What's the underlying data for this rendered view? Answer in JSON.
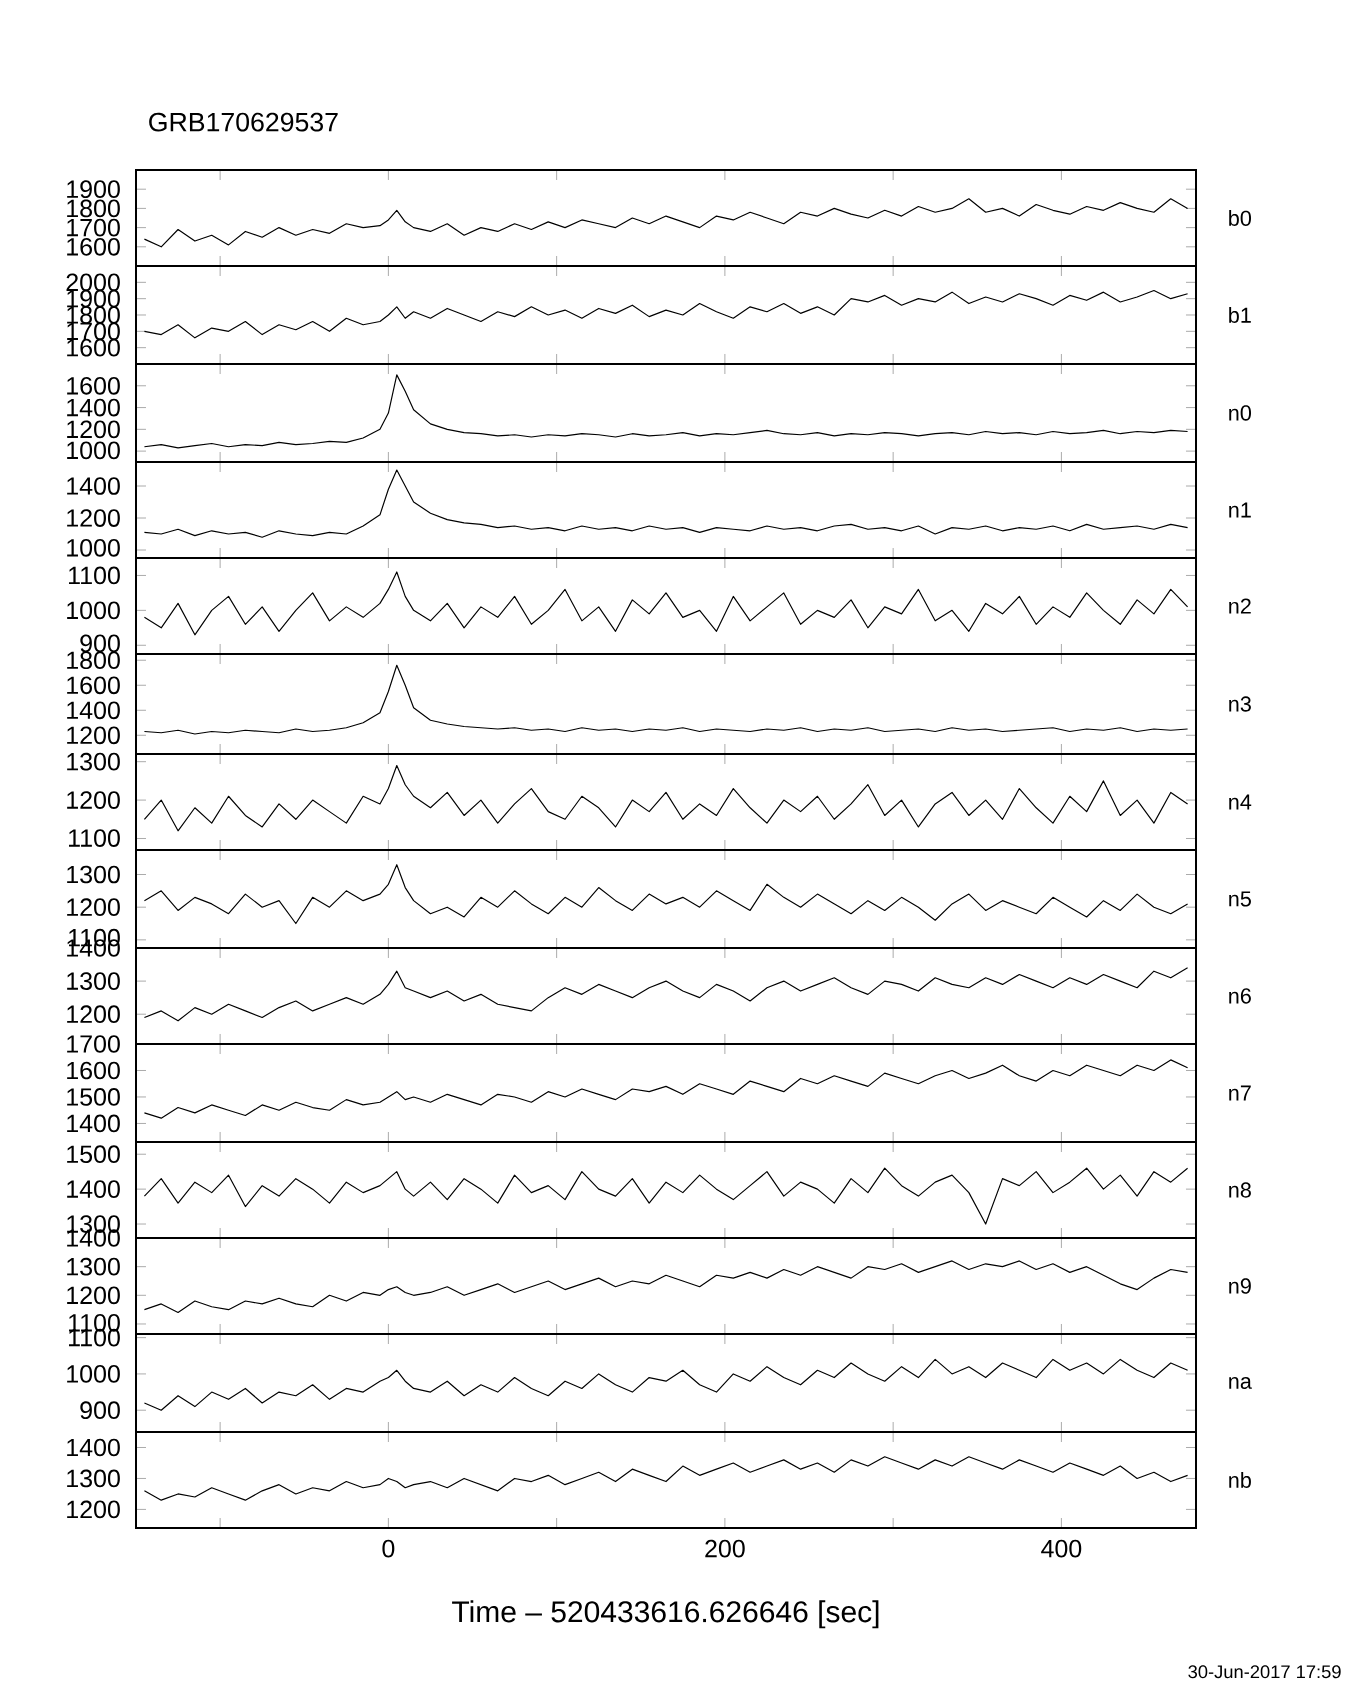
{
  "chart_data": [
    {
      "type": "line",
      "title": "GRB170629537",
      "annotations": [
        "b0"
      ],
      "color": "#000000",
      "xlim": [
        -150,
        480
      ],
      "xticks": [
        {
          "value": -100,
          "label": null
        },
        {
          "value": 0,
          "label": null
        },
        {
          "value": 100,
          "label": null
        },
        {
          "value": 200,
          "label": null
        },
        {
          "value": 300,
          "label": null
        },
        {
          "value": 400,
          "label": null
        }
      ],
      "tick_labels": "y",
      "ylim": [
        1500,
        2000
      ],
      "yticks": [
        1600,
        1700,
        1800,
        1900
      ],
      "x": [
        -145,
        -135,
        -125,
        -115,
        -105,
        -95,
        -85,
        -75,
        -65,
        -55,
        -45,
        -35,
        -25,
        -15,
        -5,
        0,
        5,
        10,
        15,
        25,
        35,
        45,
        55,
        65,
        75,
        85,
        95,
        105,
        115,
        125,
        135,
        145,
        155,
        165,
        175,
        185,
        195,
        205,
        215,
        225,
        235,
        245,
        255,
        265,
        275,
        285,
        295,
        305,
        315,
        325,
        335,
        345,
        355,
        365,
        375,
        385,
        395,
        405,
        415,
        425,
        435,
        445,
        455,
        465,
        475
      ],
      "values": [
        1640,
        1600,
        1690,
        1630,
        1660,
        1610,
        1680,
        1650,
        1700,
        1660,
        1690,
        1670,
        1720,
        1700,
        1710,
        1740,
        1790,
        1730,
        1700,
        1680,
        1720,
        1660,
        1700,
        1680,
        1720,
        1690,
        1730,
        1700,
        1740,
        1720,
        1700,
        1750,
        1720,
        1760,
        1730,
        1700,
        1760,
        1740,
        1780,
        1750,
        1720,
        1780,
        1760,
        1800,
        1770,
        1750,
        1790,
        1760,
        1810,
        1780,
        1800,
        1850,
        1780,
        1800,
        1760,
        1820,
        1790,
        1770,
        1810,
        1790,
        1830,
        1800,
        1780,
        1850,
        1800
      ]
    },
    {
      "type": "line",
      "annotations": [
        "b1"
      ],
      "color": "#000000",
      "xlim": [
        -150,
        480
      ],
      "xticks": [
        {
          "value": -100,
          "label": null
        },
        {
          "value": 0,
          "label": null
        },
        {
          "value": 100,
          "label": null
        },
        {
          "value": 200,
          "label": null
        },
        {
          "value": 300,
          "label": null
        },
        {
          "value": 400,
          "label": null
        }
      ],
      "tick_labels": "y",
      "ylim": [
        1500,
        2100
      ],
      "yticks": [
        1600,
        1700,
        1800,
        1900,
        2000
      ],
      "x": [
        -145,
        -135,
        -125,
        -115,
        -105,
        -95,
        -85,
        -75,
        -65,
        -55,
        -45,
        -35,
        -25,
        -15,
        -5,
        0,
        5,
        10,
        15,
        25,
        35,
        45,
        55,
        65,
        75,
        85,
        95,
        105,
        115,
        125,
        135,
        145,
        155,
        165,
        175,
        185,
        195,
        205,
        215,
        225,
        235,
        245,
        255,
        265,
        275,
        285,
        295,
        305,
        315,
        325,
        335,
        345,
        355,
        365,
        375,
        385,
        395,
        405,
        415,
        425,
        435,
        445,
        455,
        465,
        475
      ],
      "values": [
        1700,
        1680,
        1740,
        1660,
        1720,
        1700,
        1760,
        1680,
        1740,
        1710,
        1760,
        1700,
        1780,
        1740,
        1760,
        1800,
        1850,
        1780,
        1820,
        1780,
        1840,
        1800,
        1760,
        1820,
        1790,
        1850,
        1800,
        1830,
        1780,
        1840,
        1810,
        1860,
        1790,
        1830,
        1800,
        1870,
        1820,
        1780,
        1850,
        1820,
        1870,
        1810,
        1850,
        1800,
        1900,
        1880,
        1920,
        1860,
        1900,
        1880,
        1940,
        1870,
        1910,
        1880,
        1930,
        1900,
        1860,
        1920,
        1890,
        1940,
        1880,
        1910,
        1950,
        1900,
        1930
      ]
    },
    {
      "type": "line",
      "annotations": [
        "n0"
      ],
      "color": "#000000",
      "xlim": [
        -150,
        480
      ],
      "xticks": [
        {
          "value": -100,
          "label": null
        },
        {
          "value": 0,
          "label": null
        },
        {
          "value": 100,
          "label": null
        },
        {
          "value": 200,
          "label": null
        },
        {
          "value": 300,
          "label": null
        },
        {
          "value": 400,
          "label": null
        }
      ],
      "tick_labels": "y",
      "ylim": [
        900,
        1800
      ],
      "yticks": [
        1000,
        1200,
        1400,
        1600
      ],
      "x": [
        -145,
        -135,
        -125,
        -115,
        -105,
        -95,
        -85,
        -75,
        -65,
        -55,
        -45,
        -35,
        -25,
        -15,
        -5,
        0,
        5,
        10,
        15,
        25,
        35,
        45,
        55,
        65,
        75,
        85,
        95,
        105,
        115,
        125,
        135,
        145,
        155,
        165,
        175,
        185,
        195,
        205,
        215,
        225,
        235,
        245,
        255,
        265,
        275,
        285,
        295,
        305,
        315,
        325,
        335,
        345,
        355,
        365,
        375,
        385,
        395,
        405,
        415,
        425,
        435,
        445,
        455,
        465,
        475
      ],
      "values": [
        1040,
        1060,
        1030,
        1050,
        1070,
        1040,
        1060,
        1050,
        1080,
        1060,
        1070,
        1090,
        1080,
        1120,
        1200,
        1350,
        1700,
        1550,
        1380,
        1250,
        1200,
        1170,
        1160,
        1140,
        1150,
        1130,
        1150,
        1140,
        1160,
        1150,
        1130,
        1160,
        1140,
        1150,
        1170,
        1140,
        1160,
        1150,
        1170,
        1190,
        1160,
        1150,
        1170,
        1140,
        1160,
        1150,
        1170,
        1160,
        1140,
        1160,
        1170,
        1150,
        1180,
        1160,
        1170,
        1150,
        1180,
        1160,
        1170,
        1190,
        1160,
        1180,
        1170,
        1190,
        1180
      ]
    },
    {
      "type": "line",
      "annotations": [
        "n1"
      ],
      "color": "#000000",
      "xlim": [
        -150,
        480
      ],
      "xticks": [
        {
          "value": -100,
          "label": null
        },
        {
          "value": 0,
          "label": null
        },
        {
          "value": 100,
          "label": null
        },
        {
          "value": 200,
          "label": null
        },
        {
          "value": 300,
          "label": null
        },
        {
          "value": 400,
          "label": null
        }
      ],
      "tick_labels": "y",
      "ylim": [
        950,
        1550
      ],
      "yticks": [
        1000,
        1200,
        1400
      ],
      "x": [
        -145,
        -135,
        -125,
        -115,
        -105,
        -95,
        -85,
        -75,
        -65,
        -55,
        -45,
        -35,
        -25,
        -15,
        -5,
        0,
        5,
        10,
        15,
        25,
        35,
        45,
        55,
        65,
        75,
        85,
        95,
        105,
        115,
        125,
        135,
        145,
        155,
        165,
        175,
        185,
        195,
        205,
        215,
        225,
        235,
        245,
        255,
        265,
        275,
        285,
        295,
        305,
        315,
        325,
        335,
        345,
        355,
        365,
        375,
        385,
        395,
        405,
        415,
        425,
        435,
        445,
        455,
        465,
        475
      ],
      "values": [
        1110,
        1100,
        1130,
        1090,
        1120,
        1100,
        1110,
        1080,
        1120,
        1100,
        1090,
        1110,
        1100,
        1150,
        1220,
        1380,
        1500,
        1400,
        1300,
        1230,
        1190,
        1170,
        1160,
        1140,
        1150,
        1130,
        1140,
        1120,
        1150,
        1130,
        1140,
        1120,
        1150,
        1130,
        1140,
        1110,
        1140,
        1130,
        1120,
        1150,
        1130,
        1140,
        1120,
        1150,
        1160,
        1130,
        1140,
        1120,
        1150,
        1100,
        1140,
        1130,
        1150,
        1120,
        1140,
        1130,
        1150,
        1120,
        1160,
        1130,
        1140,
        1150,
        1130,
        1160,
        1140
      ]
    },
    {
      "type": "line",
      "annotations": [
        "n2"
      ],
      "color": "#000000",
      "xlim": [
        -150,
        480
      ],
      "xticks": [
        {
          "value": -100,
          "label": null
        },
        {
          "value": 0,
          "label": null
        },
        {
          "value": 100,
          "label": null
        },
        {
          "value": 200,
          "label": null
        },
        {
          "value": 300,
          "label": null
        },
        {
          "value": 400,
          "label": null
        }
      ],
      "tick_labels": "y",
      "ylim": [
        875,
        1150
      ],
      "yticks": [
        900,
        1000,
        1100
      ],
      "x": [
        -145,
        -135,
        -125,
        -115,
        -105,
        -95,
        -85,
        -75,
        -65,
        -55,
        -45,
        -35,
        -25,
        -15,
        -5,
        0,
        5,
        10,
        15,
        25,
        35,
        45,
        55,
        65,
        75,
        85,
        95,
        105,
        115,
        125,
        135,
        145,
        155,
        165,
        175,
        185,
        195,
        205,
        215,
        225,
        235,
        245,
        255,
        265,
        275,
        285,
        295,
        305,
        315,
        325,
        335,
        345,
        355,
        365,
        375,
        385,
        395,
        405,
        415,
        425,
        435,
        445,
        455,
        465,
        475
      ],
      "values": [
        980,
        950,
        1020,
        930,
        1000,
        1040,
        960,
        1010,
        940,
        1000,
        1050,
        970,
        1010,
        980,
        1020,
        1060,
        1110,
        1040,
        1000,
        970,
        1020,
        950,
        1010,
        980,
        1040,
        960,
        1000,
        1060,
        970,
        1010,
        940,
        1030,
        990,
        1050,
        980,
        1000,
        940,
        1040,
        970,
        1010,
        1050,
        960,
        1000,
        980,
        1030,
        950,
        1010,
        990,
        1060,
        970,
        1000,
        940,
        1020,
        990,
        1040,
        960,
        1010,
        980,
        1050,
        1000,
        960,
        1030,
        990,
        1060,
        1010
      ]
    },
    {
      "type": "line",
      "annotations": [
        "n3"
      ],
      "color": "#000000",
      "xlim": [
        -150,
        480
      ],
      "xticks": [
        {
          "value": -100,
          "label": null
        },
        {
          "value": 0,
          "label": null
        },
        {
          "value": 100,
          "label": null
        },
        {
          "value": 200,
          "label": null
        },
        {
          "value": 300,
          "label": null
        },
        {
          "value": 400,
          "label": null
        }
      ],
      "tick_labels": "y",
      "ylim": [
        1050,
        1850
      ],
      "yticks": [
        1200,
        1400,
        1600,
        1800
      ],
      "x": [
        -145,
        -135,
        -125,
        -115,
        -105,
        -95,
        -85,
        -75,
        -65,
        -55,
        -45,
        -35,
        -25,
        -15,
        -5,
        0,
        5,
        10,
        15,
        25,
        35,
        45,
        55,
        65,
        75,
        85,
        95,
        105,
        115,
        125,
        135,
        145,
        155,
        165,
        175,
        185,
        195,
        205,
        215,
        225,
        235,
        245,
        255,
        265,
        275,
        285,
        295,
        305,
        315,
        325,
        335,
        345,
        355,
        365,
        375,
        385,
        395,
        405,
        415,
        425,
        435,
        445,
        455,
        465,
        475
      ],
      "values": [
        1230,
        1220,
        1240,
        1210,
        1230,
        1220,
        1240,
        1230,
        1220,
        1250,
        1230,
        1240,
        1260,
        1300,
        1380,
        1550,
        1760,
        1600,
        1420,
        1320,
        1290,
        1270,
        1260,
        1250,
        1260,
        1240,
        1250,
        1230,
        1260,
        1240,
        1250,
        1230,
        1250,
        1240,
        1260,
        1230,
        1250,
        1240,
        1230,
        1250,
        1240,
        1260,
        1230,
        1250,
        1240,
        1260,
        1230,
        1240,
        1250,
        1230,
        1260,
        1240,
        1250,
        1230,
        1240,
        1250,
        1260,
        1230,
        1250,
        1240,
        1260,
        1230,
        1250,
        1240,
        1250
      ]
    },
    {
      "type": "line",
      "annotations": [
        "n4"
      ],
      "color": "#000000",
      "xlim": [
        -150,
        480
      ],
      "xticks": [
        {
          "value": -100,
          "label": null
        },
        {
          "value": 0,
          "label": null
        },
        {
          "value": 100,
          "label": null
        },
        {
          "value": 200,
          "label": null
        },
        {
          "value": 300,
          "label": null
        },
        {
          "value": 400,
          "label": null
        }
      ],
      "tick_labels": "y",
      "ylim": [
        1070,
        1320
      ],
      "yticks": [
        1100,
        1200,
        1300
      ],
      "x": [
        -145,
        -135,
        -125,
        -115,
        -105,
        -95,
        -85,
        -75,
        -65,
        -55,
        -45,
        -35,
        -25,
        -15,
        -5,
        0,
        5,
        10,
        15,
        25,
        35,
        45,
        55,
        65,
        75,
        85,
        95,
        105,
        115,
        125,
        135,
        145,
        155,
        165,
        175,
        185,
        195,
        205,
        215,
        225,
        235,
        245,
        255,
        265,
        275,
        285,
        295,
        305,
        315,
        325,
        335,
        345,
        355,
        365,
        375,
        385,
        395,
        405,
        415,
        425,
        435,
        445,
        455,
        465,
        475
      ],
      "values": [
        1150,
        1200,
        1120,
        1180,
        1140,
        1210,
        1160,
        1130,
        1190,
        1150,
        1200,
        1170,
        1140,
        1210,
        1190,
        1230,
        1290,
        1240,
        1210,
        1180,
        1220,
        1160,
        1200,
        1140,
        1190,
        1230,
        1170,
        1150,
        1210,
        1180,
        1130,
        1200,
        1170,
        1220,
        1150,
        1190,
        1160,
        1230,
        1180,
        1140,
        1200,
        1170,
        1210,
        1150,
        1190,
        1240,
        1160,
        1200,
        1130,
        1190,
        1220,
        1160,
        1200,
        1150,
        1230,
        1180,
        1140,
        1210,
        1170,
        1250,
        1160,
        1200,
        1140,
        1220,
        1190
      ]
    },
    {
      "type": "line",
      "annotations": [
        "n5"
      ],
      "color": "#000000",
      "xlim": [
        -150,
        480
      ],
      "xticks": [
        {
          "value": -100,
          "label": null
        },
        {
          "value": 0,
          "label": null
        },
        {
          "value": 100,
          "label": null
        },
        {
          "value": 200,
          "label": null
        },
        {
          "value": 300,
          "label": null
        },
        {
          "value": 400,
          "label": null
        }
      ],
      "tick_labels": "y",
      "ylim": [
        1075,
        1375
      ],
      "yticks": [
        1100,
        1200,
        1300
      ],
      "x": [
        -145,
        -135,
        -125,
        -115,
        -105,
        -95,
        -85,
        -75,
        -65,
        -55,
        -45,
        -35,
        -25,
        -15,
        -5,
        0,
        5,
        10,
        15,
        25,
        35,
        45,
        55,
        65,
        75,
        85,
        95,
        105,
        115,
        125,
        135,
        145,
        155,
        165,
        175,
        185,
        195,
        205,
        215,
        225,
        235,
        245,
        255,
        265,
        275,
        285,
        295,
        305,
        315,
        325,
        335,
        345,
        355,
        365,
        375,
        385,
        395,
        405,
        415,
        425,
        435,
        445,
        455,
        465,
        475
      ],
      "values": [
        1220,
        1250,
        1190,
        1230,
        1210,
        1180,
        1240,
        1200,
        1220,
        1150,
        1230,
        1200,
        1250,
        1220,
        1240,
        1270,
        1330,
        1260,
        1220,
        1180,
        1200,
        1170,
        1230,
        1200,
        1250,
        1210,
        1180,
        1230,
        1200,
        1260,
        1220,
        1190,
        1240,
        1210,
        1230,
        1200,
        1250,
        1220,
        1190,
        1270,
        1230,
        1200,
        1240,
        1210,
        1180,
        1220,
        1190,
        1230,
        1200,
        1160,
        1210,
        1240,
        1190,
        1220,
        1200,
        1180,
        1230,
        1200,
        1170,
        1220,
        1190,
        1240,
        1200,
        1180,
        1210
      ]
    },
    {
      "type": "line",
      "annotations": [
        "n6"
      ],
      "color": "#000000",
      "xlim": [
        -150,
        480
      ],
      "xticks": [
        {
          "value": -100,
          "label": null
        },
        {
          "value": 0,
          "label": null
        },
        {
          "value": 100,
          "label": null
        },
        {
          "value": 200,
          "label": null
        },
        {
          "value": 300,
          "label": null
        },
        {
          "value": 400,
          "label": null
        }
      ],
      "tick_labels": "y",
      "ylim": [
        1110,
        1400
      ],
      "yticks": [
        1200,
        1300,
        1400
      ],
      "x": [
        -145,
        -135,
        -125,
        -115,
        -105,
        -95,
        -85,
        -75,
        -65,
        -55,
        -45,
        -35,
        -25,
        -15,
        -5,
        0,
        5,
        10,
        15,
        25,
        35,
        45,
        55,
        65,
        75,
        85,
        95,
        105,
        115,
        125,
        135,
        145,
        155,
        165,
        175,
        185,
        195,
        205,
        215,
        225,
        235,
        245,
        255,
        265,
        275,
        285,
        295,
        305,
        315,
        325,
        335,
        345,
        355,
        365,
        375,
        385,
        395,
        405,
        415,
        425,
        435,
        445,
        455,
        465,
        475
      ],
      "values": [
        1190,
        1210,
        1180,
        1220,
        1200,
        1230,
        1210,
        1190,
        1220,
        1240,
        1210,
        1230,
        1250,
        1230,
        1260,
        1290,
        1330,
        1280,
        1270,
        1250,
        1270,
        1240,
        1260,
        1230,
        1220,
        1210,
        1250,
        1280,
        1260,
        1290,
        1270,
        1250,
        1280,
        1300,
        1270,
        1250,
        1290,
        1270,
        1240,
        1280,
        1300,
        1270,
        1290,
        1310,
        1280,
        1260,
        1300,
        1290,
        1270,
        1310,
        1290,
        1280,
        1310,
        1290,
        1320,
        1300,
        1280,
        1310,
        1290,
        1320,
        1300,
        1280,
        1330,
        1310,
        1340
      ]
    },
    {
      "type": "line",
      "annotations": [
        "n7"
      ],
      "color": "#000000",
      "xlim": [
        -150,
        480
      ],
      "xticks": [
        {
          "value": -100,
          "label": null
        },
        {
          "value": 0,
          "label": null
        },
        {
          "value": 100,
          "label": null
        },
        {
          "value": 200,
          "label": null
        },
        {
          "value": 300,
          "label": null
        },
        {
          "value": 400,
          "label": null
        }
      ],
      "tick_labels": "y",
      "ylim": [
        1330,
        1700
      ],
      "yticks": [
        1400,
        1500,
        1600,
        1700
      ],
      "x": [
        -145,
        -135,
        -125,
        -115,
        -105,
        -95,
        -85,
        -75,
        -65,
        -55,
        -45,
        -35,
        -25,
        -15,
        -5,
        0,
        5,
        10,
        15,
        25,
        35,
        45,
        55,
        65,
        75,
        85,
        95,
        105,
        115,
        125,
        135,
        145,
        155,
        165,
        175,
        185,
        195,
        205,
        215,
        225,
        235,
        245,
        255,
        265,
        275,
        285,
        295,
        305,
        315,
        325,
        335,
        345,
        355,
        365,
        375,
        385,
        395,
        405,
        415,
        425,
        435,
        445,
        455,
        465,
        475
      ],
      "values": [
        1440,
        1420,
        1460,
        1440,
        1470,
        1450,
        1430,
        1470,
        1450,
        1480,
        1460,
        1450,
        1490,
        1470,
        1480,
        1500,
        1520,
        1490,
        1500,
        1480,
        1510,
        1490,
        1470,
        1510,
        1500,
        1480,
        1520,
        1500,
        1530,
        1510,
        1490,
        1530,
        1520,
        1540,
        1510,
        1550,
        1530,
        1510,
        1560,
        1540,
        1520,
        1570,
        1550,
        1580,
        1560,
        1540,
        1590,
        1570,
        1550,
        1580,
        1600,
        1570,
        1590,
        1620,
        1580,
        1560,
        1600,
        1580,
        1620,
        1600,
        1580,
        1620,
        1600,
        1640,
        1610
      ]
    },
    {
      "type": "line",
      "annotations": [
        "n8"
      ],
      "color": "#000000",
      "xlim": [
        -150,
        480
      ],
      "xticks": [
        {
          "value": -100,
          "label": null
        },
        {
          "value": 0,
          "label": null
        },
        {
          "value": 100,
          "label": null
        },
        {
          "value": 200,
          "label": null
        },
        {
          "value": 300,
          "label": null
        },
        {
          "value": 400,
          "label": null
        }
      ],
      "tick_labels": "y",
      "ylim": [
        1260,
        1535
      ],
      "yticks": [
        1300,
        1400,
        1500
      ],
      "x": [
        -145,
        -135,
        -125,
        -115,
        -105,
        -95,
        -85,
        -75,
        -65,
        -55,
        -45,
        -35,
        -25,
        -15,
        -5,
        0,
        5,
        10,
        15,
        25,
        35,
        45,
        55,
        65,
        75,
        85,
        95,
        105,
        115,
        125,
        135,
        145,
        155,
        165,
        175,
        185,
        195,
        205,
        215,
        225,
        235,
        245,
        255,
        265,
        275,
        285,
        295,
        305,
        315,
        325,
        335,
        345,
        355,
        365,
        375,
        385,
        395,
        405,
        415,
        425,
        435,
        445,
        455,
        465,
        475
      ],
      "values": [
        1380,
        1430,
        1360,
        1420,
        1390,
        1440,
        1350,
        1410,
        1380,
        1430,
        1400,
        1360,
        1420,
        1390,
        1410,
        1430,
        1450,
        1400,
        1380,
        1420,
        1370,
        1430,
        1400,
        1360,
        1440,
        1390,
        1410,
        1370,
        1450,
        1400,
        1380,
        1430,
        1360,
        1420,
        1390,
        1440,
        1400,
        1370,
        1410,
        1450,
        1380,
        1420,
        1400,
        1360,
        1430,
        1390,
        1460,
        1410,
        1380,
        1420,
        1440,
        1390,
        1300,
        1430,
        1410,
        1450,
        1390,
        1420,
        1460,
        1400,
        1440,
        1380,
        1450,
        1420,
        1460
      ]
    },
    {
      "type": "line",
      "annotations": [
        "n9"
      ],
      "color": "#000000",
      "xlim": [
        -150,
        480
      ],
      "xticks": [
        {
          "value": -100,
          "label": null
        },
        {
          "value": 0,
          "label": null
        },
        {
          "value": 100,
          "label": null
        },
        {
          "value": 200,
          "label": null
        },
        {
          "value": 300,
          "label": null
        },
        {
          "value": 400,
          "label": null
        }
      ],
      "tick_labels": "y",
      "ylim": [
        1065,
        1400
      ],
      "yticks": [
        1100,
        1200,
        1300,
        1400
      ],
      "x": [
        -145,
        -135,
        -125,
        -115,
        -105,
        -95,
        -85,
        -75,
        -65,
        -55,
        -45,
        -35,
        -25,
        -15,
        -5,
        0,
        5,
        10,
        15,
        25,
        35,
        45,
        55,
        65,
        75,
        85,
        95,
        105,
        115,
        125,
        135,
        145,
        155,
        165,
        175,
        185,
        195,
        205,
        215,
        225,
        235,
        245,
        255,
        265,
        275,
        285,
        295,
        305,
        315,
        325,
        335,
        345,
        355,
        365,
        375,
        385,
        395,
        405,
        415,
        425,
        435,
        445,
        455,
        465,
        475
      ],
      "values": [
        1150,
        1170,
        1140,
        1180,
        1160,
        1150,
        1180,
        1170,
        1190,
        1170,
        1160,
        1200,
        1180,
        1210,
        1200,
        1220,
        1230,
        1210,
        1200,
        1210,
        1230,
        1200,
        1220,
        1240,
        1210,
        1230,
        1250,
        1220,
        1240,
        1260,
        1230,
        1250,
        1240,
        1270,
        1250,
        1230,
        1270,
        1260,
        1280,
        1260,
        1290,
        1270,
        1300,
        1280,
        1260,
        1300,
        1290,
        1310,
        1280,
        1300,
        1320,
        1290,
        1310,
        1300,
        1320,
        1290,
        1310,
        1280,
        1300,
        1270,
        1240,
        1220,
        1260,
        1290,
        1280
      ]
    },
    {
      "type": "line",
      "annotations": [
        "na"
      ],
      "color": "#000000",
      "xlim": [
        -150,
        480
      ],
      "xticks": [
        {
          "value": -100,
          "label": null
        },
        {
          "value": 0,
          "label": null
        },
        {
          "value": 100,
          "label": null
        },
        {
          "value": 200,
          "label": null
        },
        {
          "value": 300,
          "label": null
        },
        {
          "value": 400,
          "label": null
        }
      ],
      "tick_labels": "y",
      "ylim": [
        840,
        1110
      ],
      "yticks": [
        900,
        1000,
        1100
      ],
      "x": [
        -145,
        -135,
        -125,
        -115,
        -105,
        -95,
        -85,
        -75,
        -65,
        -55,
        -45,
        -35,
        -25,
        -15,
        -5,
        0,
        5,
        10,
        15,
        25,
        35,
        45,
        55,
        65,
        75,
        85,
        95,
        105,
        115,
        125,
        135,
        145,
        155,
        165,
        175,
        185,
        195,
        205,
        215,
        225,
        235,
        245,
        255,
        265,
        275,
        285,
        295,
        305,
        315,
        325,
        335,
        345,
        355,
        365,
        375,
        385,
        395,
        405,
        415,
        425,
        435,
        445,
        455,
        465,
        475
      ],
      "values": [
        920,
        900,
        940,
        910,
        950,
        930,
        960,
        920,
        950,
        940,
        970,
        930,
        960,
        950,
        980,
        990,
        1010,
        980,
        960,
        950,
        980,
        940,
        970,
        950,
        990,
        960,
        940,
        980,
        960,
        1000,
        970,
        950,
        990,
        980,
        1010,
        970,
        950,
        1000,
        980,
        1020,
        990,
        970,
        1010,
        990,
        1030,
        1000,
        980,
        1020,
        990,
        1040,
        1000,
        1020,
        990,
        1030,
        1010,
        990,
        1040,
        1010,
        1030,
        1000,
        1040,
        1010,
        990,
        1030,
        1010
      ]
    },
    {
      "type": "line",
      "annotations": [
        "nb",
        "30-Jun-2017 17:59"
      ],
      "xlabel": "Time – 520433616.626646 [sec]",
      "color": "#000000",
      "xlim": [
        -150,
        480
      ],
      "xticks": [
        {
          "value": -100,
          "label": null
        },
        0,
        {
          "value": 100,
          "label": null
        },
        200,
        {
          "value": 300,
          "label": null
        },
        400
      ],
      "ylim": [
        1140,
        1450
      ],
      "yticks": [
        1200,
        1300,
        1400
      ],
      "x": [
        -145,
        -135,
        -125,
        -115,
        -105,
        -95,
        -85,
        -75,
        -65,
        -55,
        -45,
        -35,
        -25,
        -15,
        -5,
        0,
        5,
        10,
        15,
        25,
        35,
        45,
        55,
        65,
        75,
        85,
        95,
        105,
        115,
        125,
        135,
        145,
        155,
        165,
        175,
        185,
        195,
        205,
        215,
        225,
        235,
        245,
        255,
        265,
        275,
        285,
        295,
        305,
        315,
        325,
        335,
        345,
        355,
        365,
        375,
        385,
        395,
        405,
        415,
        425,
        435,
        445,
        455,
        465,
        475
      ],
      "values": [
        1260,
        1230,
        1250,
        1240,
        1270,
        1250,
        1230,
        1260,
        1280,
        1250,
        1270,
        1260,
        1290,
        1270,
        1280,
        1300,
        1290,
        1270,
        1280,
        1290,
        1270,
        1300,
        1280,
        1260,
        1300,
        1290,
        1310,
        1280,
        1300,
        1320,
        1290,
        1330,
        1310,
        1290,
        1340,
        1310,
        1330,
        1350,
        1320,
        1340,
        1360,
        1330,
        1350,
        1320,
        1360,
        1340,
        1370,
        1350,
        1330,
        1360,
        1340,
        1370,
        1350,
        1330,
        1360,
        1340,
        1320,
        1350,
        1330,
        1310,
        1340,
        1300,
        1320,
        1290,
        1310
      ]
    }
  ]
}
